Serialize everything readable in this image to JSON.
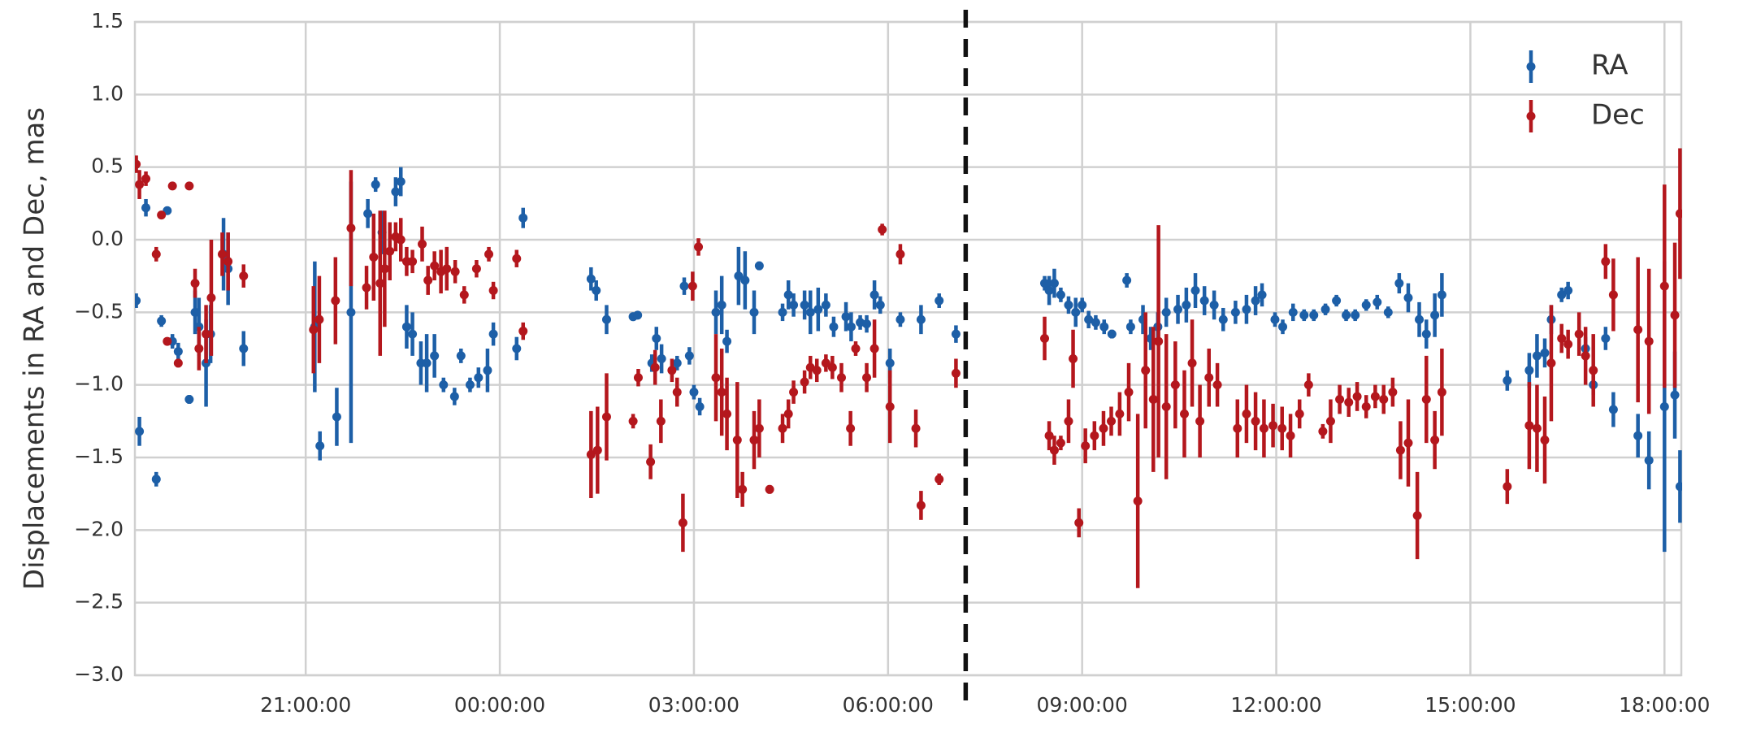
{
  "chart_data": {
    "type": "errorbar",
    "y_label": "Displacements in RA and Dec, mas",
    "xlim": [
      18.36,
      42.26
    ],
    "xticks": [
      {
        "value": 21,
        "label": "21:00:00"
      },
      {
        "value": 24,
        "label": "00:00:00"
      },
      {
        "value": 27,
        "label": "03:00:00"
      },
      {
        "value": 30,
        "label": "06:00:00"
      },
      {
        "value": 33,
        "label": "09:00:00"
      },
      {
        "value": 36,
        "label": "12:00:00"
      },
      {
        "value": 39,
        "label": "15:00:00"
      },
      {
        "value": 42,
        "label": "18:00:00"
      }
    ],
    "ylim": [
      -3,
      1.5
    ],
    "yticks": [
      1.5,
      {
        "value": 1,
        "label": "1.0"
      },
      0.5,
      {
        "value": 0,
        "label": "0.0"
      },
      {
        "value": -0.5,
        "label": "−0.5"
      },
      {
        "value": -1,
        "label": "−1.0"
      },
      {
        "value": -1.5,
        "label": "−1.5"
      },
      {
        "value": -2,
        "label": "−2.0"
      },
      {
        "value": -2.5,
        "label": "−2.5"
      },
      {
        "value": -3,
        "label": "−3.0"
      }
    ],
    "grid": true,
    "legend": "upper right",
    "vline": 31.2,
    "series": [
      {
        "name": "RA",
        "color": "#1d5fa7",
        "x": [
          18.38,
          18.43,
          18.53,
          18.69,
          18.77,
          18.86,
          18.94,
          19.03,
          19.2,
          19.29,
          19.35,
          19.46,
          19.53,
          19.73,
          19.8,
          20.04,
          21.14,
          21.22,
          21.48,
          21.7,
          21.96,
          22.08,
          22.18,
          22.39,
          22.47,
          22.56,
          22.65,
          22.78,
          22.87,
          22.99,
          23.13,
          23.3,
          23.4,
          23.54,
          23.67,
          23.81,
          23.9,
          24.26,
          24.36,
          25.41,
          25.49,
          25.65,
          26.06,
          26.13,
          26.35,
          26.42,
          26.5,
          26.74,
          26.85,
          26.93,
          27.0,
          27.09,
          27.34,
          27.43,
          27.51,
          27.69,
          27.79,
          27.93,
          28.01,
          28.37,
          28.46,
          28.54,
          28.71,
          28.8,
          28.92,
          29.04,
          29.16,
          29.35,
          29.43,
          29.57,
          29.67,
          29.79,
          29.88,
          30.03,
          30.19,
          30.51,
          30.79,
          31.05,
          32.42,
          32.49,
          32.57,
          32.67,
          32.79,
          32.9,
          33.0,
          33.1,
          33.21,
          33.34,
          33.46,
          33.69,
          33.75,
          33.94,
          34.06,
          34.17,
          34.3,
          34.48,
          34.61,
          34.75,
          34.89,
          35.04,
          35.18,
          35.37,
          35.54,
          35.68,
          35.78,
          35.98,
          36.1,
          36.26,
          36.43,
          36.58,
          36.76,
          36.93,
          37.08,
          37.22,
          37.39,
          37.56,
          37.73,
          37.9,
          38.04,
          38.21,
          38.32,
          38.45,
          38.56,
          39.57,
          39.91,
          40.03,
          40.15,
          40.25,
          40.41,
          40.51,
          40.78,
          40.9,
          41.09,
          41.21,
          41.59,
          41.76,
          42.0,
          42.16,
          42.24
        ],
        "values": [
          -0.42,
          -1.32,
          0.22,
          -1.65,
          -0.56,
          0.2,
          -0.7,
          -0.77,
          -1.1,
          -0.5,
          -0.6,
          -0.85,
          -0.65,
          -0.1,
          -0.2,
          -0.75,
          -0.6,
          -1.42,
          -1.22,
          -0.5,
          0.18,
          0.38,
          0.05,
          0.33,
          0.4,
          -0.6,
          -0.65,
          -0.85,
          -0.85,
          -0.8,
          -1.0,
          -1.08,
          -0.8,
          -1.0,
          -0.95,
          -0.9,
          -0.65,
          -0.75,
          0.15,
          -0.27,
          -0.35,
          -0.55,
          -0.53,
          -0.52,
          -0.85,
          -0.68,
          -0.82,
          -0.85,
          -0.32,
          -0.8,
          -1.05,
          -1.15,
          -0.5,
          -0.45,
          -0.7,
          -0.25,
          -0.28,
          -0.5,
          -0.18,
          -0.5,
          -0.38,
          -0.45,
          -0.45,
          -0.5,
          -0.48,
          -0.45,
          -0.6,
          -0.53,
          -0.6,
          -0.57,
          -0.58,
          -0.38,
          -0.45,
          -0.85,
          -0.55,
          -0.55,
          -0.42,
          -0.65,
          -0.3,
          -0.35,
          -0.3,
          -0.38,
          -0.45,
          -0.5,
          -0.45,
          -0.55,
          -0.57,
          -0.6,
          -0.65,
          -0.28,
          -0.6,
          -0.55,
          -0.68,
          -0.6,
          -0.5,
          -0.48,
          -0.45,
          -0.35,
          -0.42,
          -0.45,
          -0.55,
          -0.5,
          -0.48,
          -0.42,
          -0.38,
          -0.55,
          -0.6,
          -0.5,
          -0.52,
          -0.52,
          -0.48,
          -0.42,
          -0.52,
          -0.52,
          -0.45,
          -0.43,
          -0.5,
          -0.3,
          -0.4,
          -0.55,
          -0.65,
          -0.52,
          -0.38,
          -0.97,
          -0.9,
          -0.8,
          -0.78,
          -0.55,
          -0.38,
          -0.35,
          -0.75,
          -1.0,
          -0.68,
          -1.17,
          -1.35,
          -1.52,
          -1.15,
          -1.07,
          -1.7
        ],
        "errors": [
          0.05,
          0.1,
          0.06,
          0.05,
          0.04,
          0.02,
          0.05,
          0.06,
          0.03,
          0.15,
          0.2,
          0.3,
          0.2,
          0.25,
          0.25,
          0.12,
          0.45,
          0.1,
          0.2,
          0.9,
          0.1,
          0.05,
          0.15,
          0.1,
          0.1,
          0.15,
          0.15,
          0.15,
          0.2,
          0.15,
          0.05,
          0.06,
          0.05,
          0.05,
          0.07,
          0.15,
          0.08,
          0.08,
          0.07,
          0.08,
          0.07,
          0.1,
          0.03,
          0.02,
          0.06,
          0.08,
          0.1,
          0.05,
          0.06,
          0.06,
          0.05,
          0.06,
          0.15,
          0.2,
          0.08,
          0.2,
          0.2,
          0.15,
          0.03,
          0.06,
          0.1,
          0.08,
          0.1,
          0.15,
          0.15,
          0.08,
          0.07,
          0.1,
          0.1,
          0.05,
          0.06,
          0.1,
          0.06,
          0.1,
          0.05,
          0.1,
          0.05,
          0.06,
          0.05,
          0.1,
          0.1,
          0.05,
          0.06,
          0.1,
          0.05,
          0.06,
          0.05,
          0.05,
          0.03,
          0.05,
          0.05,
          0.1,
          0.08,
          0.1,
          0.1,
          0.1,
          0.12,
          0.12,
          0.1,
          0.1,
          0.08,
          0.08,
          0.1,
          0.1,
          0.08,
          0.05,
          0.05,
          0.06,
          0.04,
          0.04,
          0.04,
          0.04,
          0.04,
          0.04,
          0.04,
          0.05,
          0.04,
          0.07,
          0.1,
          0.12,
          0.1,
          0.15,
          0.15,
          0.07,
          0.12,
          0.15,
          0.1,
          0.1,
          0.05,
          0.06,
          0.08,
          0.07,
          0.08,
          0.12,
          0.15,
          0.2,
          1.0,
          0.3,
          0.25
        ]
      },
      {
        "name": "Dec",
        "color": "#b4171d",
        "x": [
          18.38,
          18.43,
          18.53,
          18.69,
          18.77,
          18.86,
          18.94,
          19.03,
          19.2,
          19.29,
          19.35,
          19.46,
          19.54,
          19.71,
          19.8,
          20.04,
          21.12,
          21.21,
          21.46,
          21.7,
          21.94,
          22.05,
          22.15,
          22.22,
          22.3,
          22.39,
          22.47,
          22.56,
          22.65,
          22.8,
          22.89,
          22.99,
          23.09,
          23.18,
          23.31,
          23.45,
          23.64,
          23.83,
          23.9,
          24.26,
          24.36,
          25.41,
          25.51,
          25.65,
          26.06,
          26.14,
          26.33,
          26.4,
          26.49,
          26.66,
          26.74,
          26.83,
          26.98,
          27.07,
          27.34,
          27.43,
          27.51,
          27.67,
          27.75,
          27.93,
          28.01,
          28.17,
          28.37,
          28.46,
          28.54,
          28.71,
          28.8,
          28.9,
          29.04,
          29.14,
          29.28,
          29.42,
          29.5,
          29.67,
          29.79,
          29.91,
          30.03,
          30.19,
          30.43,
          30.51,
          30.79,
          31.05,
          32.42,
          32.49,
          32.57,
          32.67,
          32.79,
          32.86,
          32.95,
          33.05,
          33.19,
          33.33,
          33.45,
          33.58,
          33.72,
          33.86,
          33.98,
          34.1,
          34.18,
          34.3,
          34.44,
          34.58,
          34.7,
          34.82,
          34.96,
          35.09,
          35.4,
          35.54,
          35.68,
          35.81,
          35.95,
          36.09,
          36.22,
          36.36,
          36.5,
          36.72,
          36.84,
          36.98,
          37.12,
          37.25,
          37.39,
          37.53,
          37.66,
          37.8,
          37.92,
          38.04,
          38.18,
          38.32,
          38.45,
          38.56,
          39.57,
          39.91,
          40.03,
          40.15,
          40.25,
          40.41,
          40.51,
          40.68,
          40.78,
          40.9,
          41.09,
          41.21,
          41.59,
          41.76,
          42.0,
          42.16,
          42.24
        ],
        "values": [
          0.52,
          0.38,
          0.42,
          -0.1,
          0.17,
          -0.7,
          0.37,
          -0.85,
          0.37,
          -0.3,
          -0.75,
          -0.65,
          -0.4,
          -0.1,
          -0.15,
          -0.25,
          -0.62,
          -0.55,
          -0.42,
          0.08,
          -0.33,
          -0.12,
          -0.3,
          -0.2,
          -0.08,
          0.02,
          0.0,
          -0.15,
          -0.15,
          -0.03,
          -0.28,
          -0.18,
          -0.22,
          -0.2,
          -0.22,
          -0.38,
          -0.2,
          -0.1,
          -0.35,
          -0.13,
          -0.63,
          -1.48,
          -1.45,
          -1.22,
          -1.25,
          -0.95,
          -1.53,
          -0.88,
          -1.25,
          -0.9,
          -1.05,
          -1.95,
          -0.32,
          -0.05,
          -0.95,
          -1.05,
          -1.2,
          -1.38,
          -1.72,
          -1.38,
          -1.3,
          -1.72,
          -1.3,
          -1.2,
          -1.05,
          -0.98,
          -0.88,
          -0.9,
          -0.85,
          -0.88,
          -0.95,
          -1.3,
          -0.75,
          -0.95,
          -0.75,
          0.07,
          -1.15,
          -0.1,
          -1.3,
          -1.83,
          -1.65,
          -0.92,
          -0.68,
          -1.35,
          -1.45,
          -1.4,
          -1.25,
          -0.82,
          -1.95,
          -1.42,
          -1.35,
          -1.3,
          -1.25,
          -1.2,
          -1.05,
          -1.8,
          -0.9,
          -1.1,
          -0.7,
          -1.15,
          -1.0,
          -1.2,
          -0.85,
          -1.25,
          -0.95,
          -1.0,
          -1.3,
          -1.2,
          -1.25,
          -1.3,
          -1.28,
          -1.3,
          -1.35,
          -1.2,
          -1.0,
          -1.32,
          -1.25,
          -1.1,
          -1.12,
          -1.08,
          -1.15,
          -1.08,
          -1.1,
          -1.05,
          -1.45,
          -1.4,
          -1.9,
          -1.1,
          -1.38,
          -1.05,
          -1.7,
          -1.28,
          -1.3,
          -1.38,
          -0.85,
          -0.68,
          -0.72,
          -0.65,
          -0.8,
          -0.9,
          -0.15,
          -0.38,
          -0.62,
          -0.7,
          -0.32,
          -0.52,
          0.18
        ],
        "errors": [
          0.06,
          0.1,
          0.05,
          0.05,
          0.02,
          0.02,
          0.02,
          0.03,
          0.02,
          0.1,
          0.15,
          0.2,
          0.4,
          0.15,
          0.2,
          0.08,
          0.3,
          0.3,
          0.3,
          0.4,
          0.15,
          0.3,
          0.5,
          0.4,
          0.2,
          0.1,
          0.15,
          0.1,
          0.08,
          0.12,
          0.1,
          0.1,
          0.15,
          0.15,
          0.08,
          0.06,
          0.06,
          0.05,
          0.06,
          0.06,
          0.06,
          0.3,
          0.3,
          0.3,
          0.05,
          0.06,
          0.12,
          0.12,
          0.15,
          0.08,
          0.1,
          0.2,
          0.1,
          0.06,
          0.3,
          0.3,
          0.25,
          0.4,
          0.12,
          0.2,
          0.2,
          0.03,
          0.1,
          0.1,
          0.08,
          0.08,
          0.08,
          0.08,
          0.06,
          0.08,
          0.1,
          0.12,
          0.05,
          0.1,
          0.2,
          0.04,
          0.25,
          0.07,
          0.13,
          0.1,
          0.04,
          0.1,
          0.15,
          0.1,
          0.1,
          0.05,
          0.15,
          0.2,
          0.1,
          0.12,
          0.1,
          0.12,
          0.1,
          0.15,
          0.2,
          0.6,
          0.4,
          0.5,
          0.8,
          0.5,
          0.3,
          0.3,
          0.3,
          0.25,
          0.2,
          0.15,
          0.2,
          0.2,
          0.2,
          0.2,
          0.15,
          0.15,
          0.15,
          0.1,
          0.08,
          0.05,
          0.15,
          0.1,
          0.1,
          0.1,
          0.08,
          0.08,
          0.1,
          0.1,
          0.2,
          0.3,
          0.3,
          0.3,
          0.2,
          0.3,
          0.12,
          0.3,
          0.3,
          0.3,
          0.4,
          0.1,
          0.1,
          0.15,
          0.2,
          0.25,
          0.12,
          0.25,
          0.5,
          0.5,
          0.7,
          0.5,
          0.45
        ]
      }
    ]
  }
}
